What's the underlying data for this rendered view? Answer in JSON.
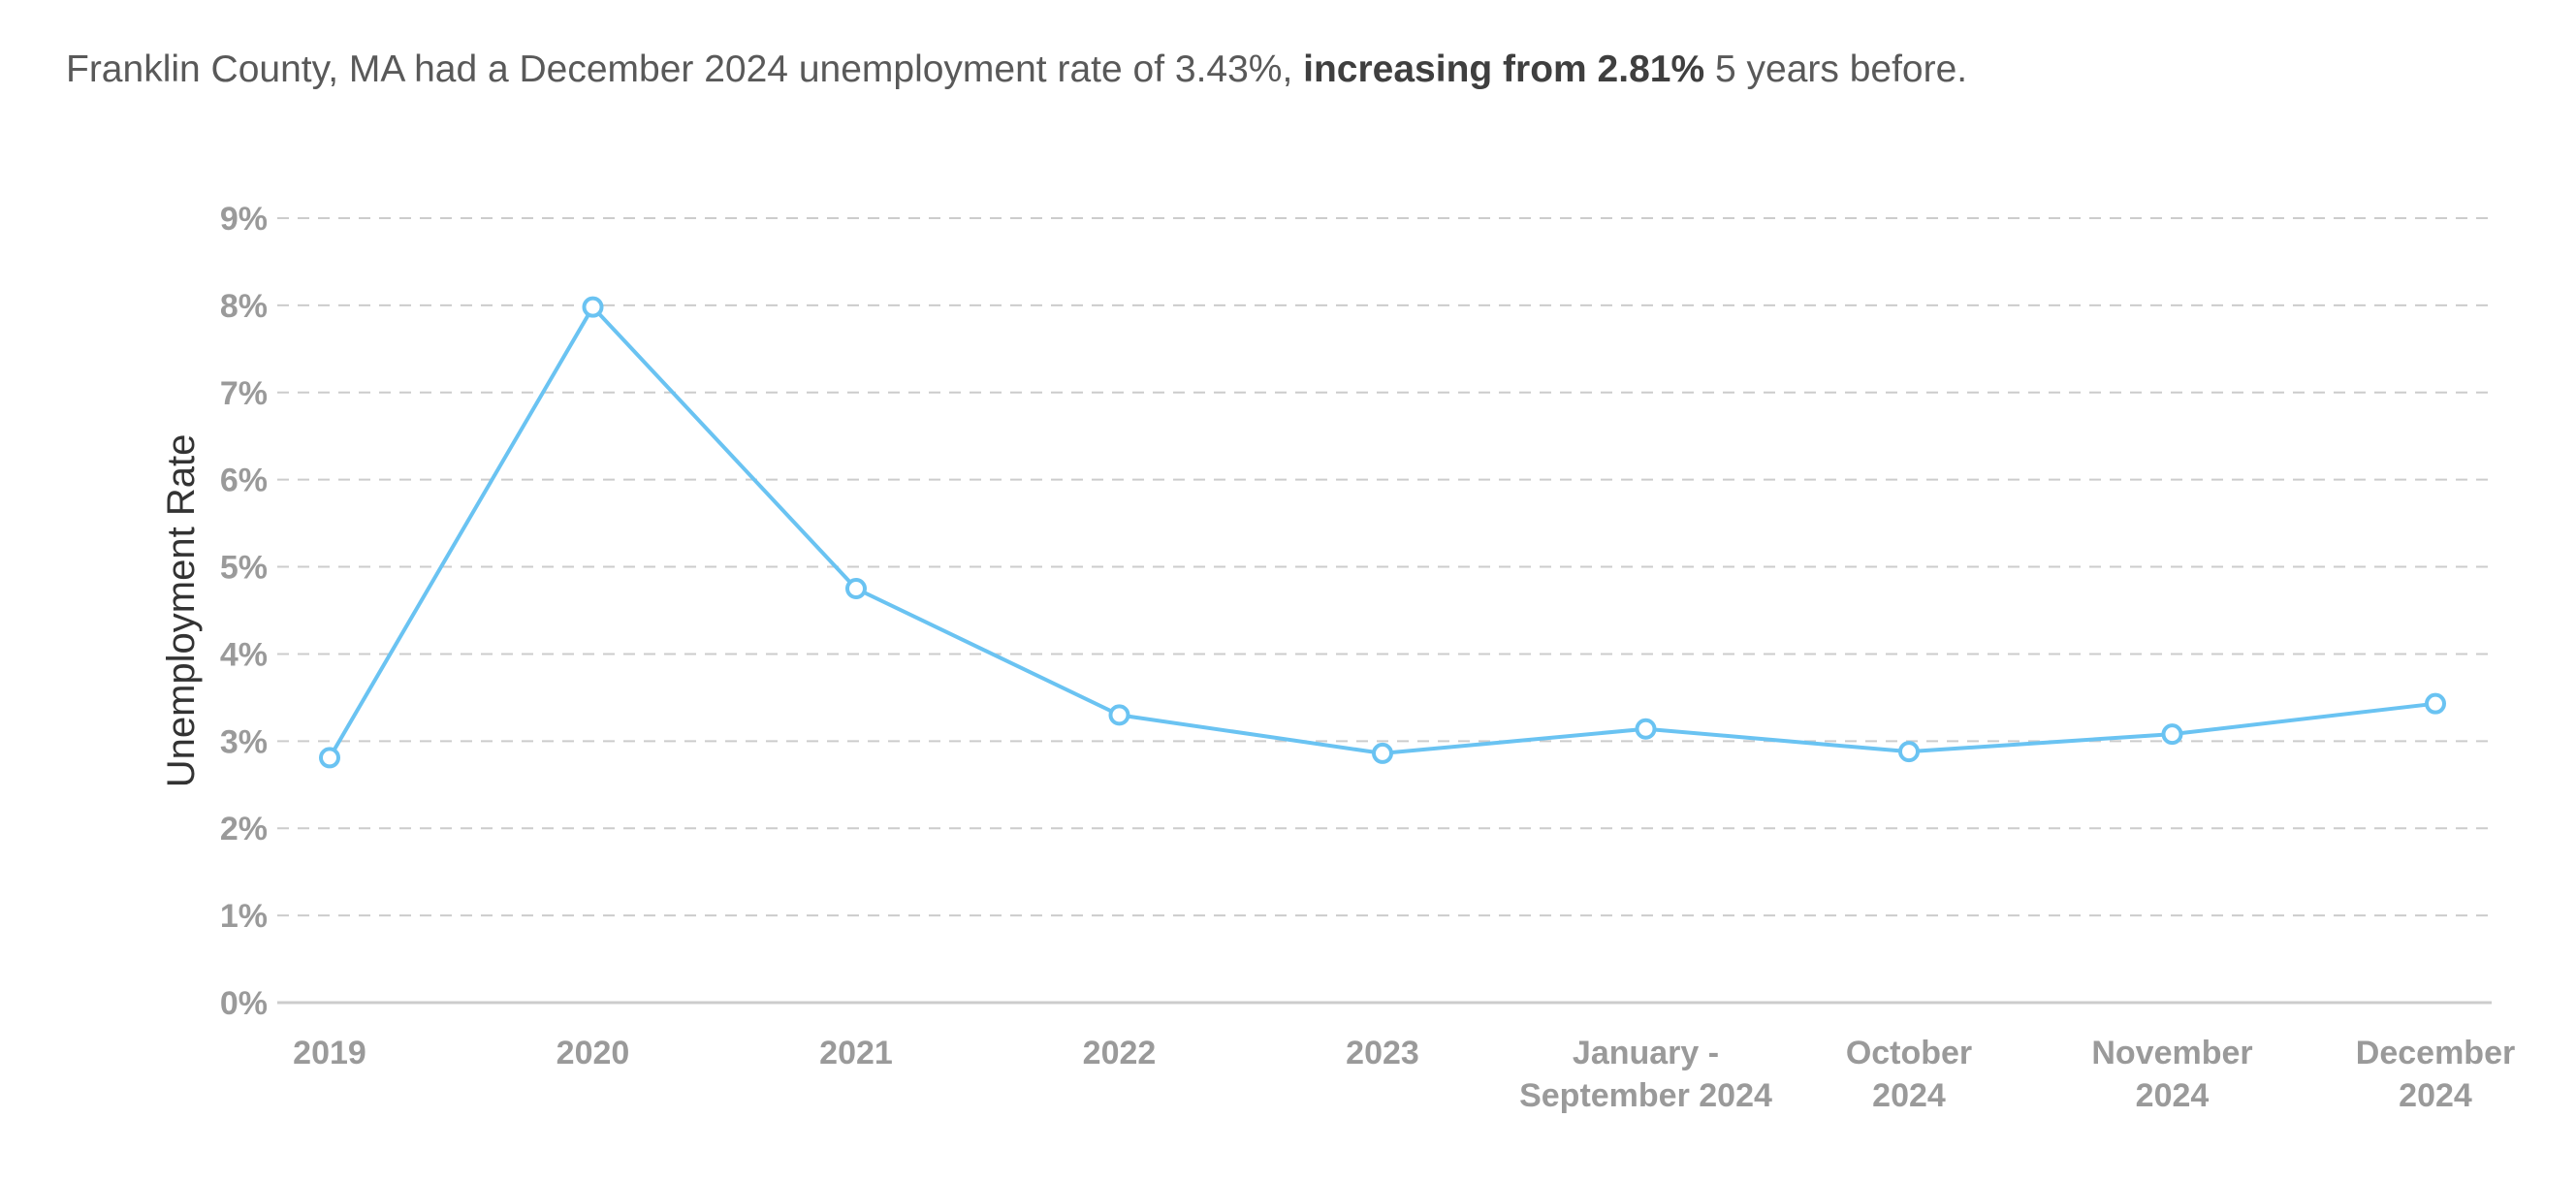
{
  "summary": {
    "before": "Franklin County, MA had a December 2024 unemployment rate of 3.43%, ",
    "bold": "increasing from 2.81%",
    "after": " 5 years before."
  },
  "chart_data": {
    "type": "line",
    "title": "",
    "xlabel": "",
    "ylabel": "Unemployment Rate",
    "categories": [
      [
        "2019"
      ],
      [
        "2020"
      ],
      [
        "2021"
      ],
      [
        "2022"
      ],
      [
        "2023"
      ],
      [
        "January -",
        "September 2024"
      ],
      [
        "October",
        "2024"
      ],
      [
        "November",
        "2024"
      ],
      [
        "December",
        "2024"
      ]
    ],
    "series": [
      {
        "values": [
          2.81,
          7.98,
          4.75,
          3.3,
          2.86,
          3.14,
          2.88,
          3.08,
          3.43
        ]
      }
    ],
    "ylim": [
      0,
      9
    ],
    "yticks": [
      0,
      1,
      2,
      3,
      4,
      5,
      6,
      7,
      8,
      9
    ],
    "ytick_suffix": "%",
    "grid": true,
    "line_color": "#6ac3f2",
    "grid_color": "#cccccc",
    "axis_color": "#cccccc"
  }
}
